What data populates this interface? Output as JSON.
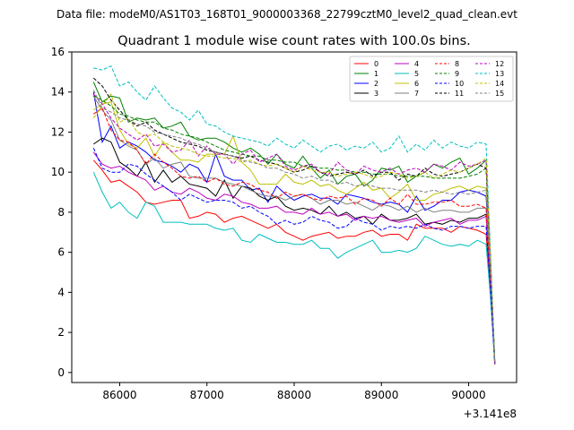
{
  "figure": {
    "suptitle": "Data file: modeM0/AS1T03_168T01_9000003368_22799cztM0_level2_quad_clean.evt",
    "title": "Quadrant 1 module wise count rates with 100.0s bins.",
    "offset_text": "+3.141e8"
  },
  "chart_data": {
    "type": "line",
    "xlabel": "",
    "ylabel": "",
    "x_offset": 314100000,
    "xlim": [
      85450,
      90550
    ],
    "ylim": [
      -0.5,
      16
    ],
    "xticks": [
      86000,
      87000,
      88000,
      89000,
      90000
    ],
    "yticks": [
      0,
      2,
      4,
      6,
      8,
      10,
      12,
      14,
      16
    ],
    "x": [
      85700,
      85800,
      85900,
      86000,
      86100,
      86200,
      86300,
      86400,
      86500,
      86600,
      86700,
      86800,
      86900,
      87000,
      87100,
      87200,
      87300,
      87400,
      87500,
      87600,
      87700,
      87800,
      87900,
      88000,
      88100,
      88200,
      88300,
      88400,
      88500,
      88600,
      88700,
      88800,
      88900,
      89000,
      89100,
      89200,
      89300,
      89400,
      89500,
      89600,
      89700,
      89800,
      89900,
      90000,
      90100,
      90200,
      90250,
      90300
    ],
    "legend": {
      "location": "upper right",
      "columns": 4
    },
    "series": [
      {
        "name": "0",
        "color": "#ff0000",
        "dash": "solid",
        "values": [
          10.6,
          10.1,
          9.5,
          9.6,
          9.3,
          9.0,
          8.5,
          8.4,
          8.5,
          8.6,
          8.6,
          7.7,
          7.8,
          8.0,
          7.9,
          7.5,
          7.7,
          7.8,
          7.6,
          7.4,
          7.2,
          7.4,
          7.0,
          6.8,
          6.6,
          6.8,
          6.9,
          7.0,
          6.7,
          6.8,
          6.8,
          7.0,
          7.1,
          6.8,
          6.9,
          6.9,
          6.6,
          7.4,
          7.2,
          7.2,
          7.2,
          7.0,
          7.3,
          7.2,
          7.1,
          6.9,
          4.2,
          0.5
        ]
      },
      {
        "name": "1",
        "color": "#008000",
        "dash": "solid",
        "values": [
          14.5,
          13.5,
          13.8,
          13.7,
          12.5,
          12.7,
          12.6,
          12.7,
          12.2,
          12.3,
          12.5,
          11.8,
          11.6,
          11.7,
          11.7,
          11.5,
          11.2,
          11.0,
          11.2,
          10.9,
          10.4,
          10.9,
          10.4,
          10.2,
          10.8,
          10.2,
          9.7,
          10.1,
          9.4,
          9.8,
          9.9,
          9.3,
          9.6,
          10.2,
          10.1,
          10.3,
          9.5,
          9.8,
          10.0,
          10.4,
          10.2,
          10.5,
          10.7,
          9.9,
          10.2,
          10.6,
          5.5,
          0.6
        ]
      },
      {
        "name": "2",
        "color": "#0000ff",
        "dash": "solid",
        "values": [
          14.0,
          11.5,
          12.3,
          11.2,
          11.5,
          11.3,
          11.0,
          10.6,
          10.5,
          10.3,
          10.0,
          10.4,
          10.2,
          9.5,
          10.9,
          9.8,
          9.6,
          9.6,
          9.1,
          9.2,
          8.5,
          9.3,
          8.9,
          8.6,
          8.8,
          8.9,
          8.7,
          8.7,
          8.4,
          8.9,
          8.8,
          8.7,
          8.5,
          8.4,
          8.5,
          8.4,
          8.0,
          8.8,
          8.1,
          8.3,
          8.6,
          8.6,
          9.0,
          9.1,
          9.0,
          8.8,
          5.0,
          0.4
        ]
      },
      {
        "name": "3",
        "color": "#000000",
        "dash": "solid",
        "values": [
          11.4,
          11.7,
          11.5,
          10.5,
          10.2,
          9.8,
          10.5,
          9.5,
          10.1,
          9.5,
          9.8,
          9.4,
          9.3,
          9.2,
          8.8,
          9.6,
          8.7,
          9.3,
          9.2,
          8.8,
          8.6,
          8.8,
          8.3,
          8.1,
          8.2,
          8.1,
          7.9,
          8.3,
          7.8,
          8.0,
          7.7,
          7.8,
          7.4,
          7.9,
          7.6,
          7.6,
          7.7,
          7.9,
          7.4,
          7.5,
          7.4,
          7.6,
          7.5,
          7.7,
          7.7,
          7.9,
          4.5,
          0.4
        ]
      },
      {
        "name": "4",
        "color": "#bf00bf",
        "dash": "solid",
        "values": [
          11.0,
          10.4,
          10.2,
          10.3,
          10.0,
          9.8,
          9.6,
          9.1,
          9.3,
          9.0,
          8.9,
          9.2,
          9.0,
          8.7,
          8.6,
          8.9,
          8.8,
          8.5,
          8.4,
          8.2,
          8.2,
          8.3,
          8.0,
          8.0,
          7.9,
          8.2,
          7.9,
          8.0,
          7.8,
          7.9,
          7.6,
          7.8,
          7.7,
          7.8,
          7.6,
          7.5,
          7.6,
          7.7,
          7.3,
          7.5,
          7.6,
          7.7,
          7.4,
          7.6,
          7.6,
          7.8,
          4.4,
          0.4
        ]
      },
      {
        "name": "5",
        "color": "#00bfbf",
        "dash": "solid",
        "values": [
          10.0,
          9.0,
          8.2,
          8.5,
          8.0,
          7.7,
          8.5,
          8.3,
          7.5,
          7.5,
          7.5,
          7.4,
          7.4,
          7.4,
          7.2,
          7.1,
          7.2,
          6.6,
          6.5,
          6.9,
          6.7,
          6.5,
          6.5,
          6.4,
          6.4,
          6.6,
          6.2,
          6.2,
          5.7,
          6.0,
          6.2,
          6.4,
          6.6,
          6.0,
          6.0,
          6.1,
          6.0,
          6.2,
          6.8,
          6.6,
          6.4,
          6.3,
          6.4,
          6.3,
          6.6,
          6.4,
          3.8,
          0.4
        ]
      },
      {
        "name": "6",
        "color": "#bfbf00",
        "dash": "solid",
        "values": [
          13.1,
          13.4,
          13.5,
          12.1,
          11.4,
          11.2,
          11.7,
          10.8,
          11.5,
          11.0,
          10.6,
          10.6,
          10.5,
          10.9,
          10.9,
          10.9,
          11.8,
          10.5,
          10.1,
          9.4,
          9.4,
          9.4,
          9.9,
          9.5,
          9.4,
          9.6,
          9.3,
          9.4,
          9.1,
          8.9,
          9.2,
          9.5,
          9.1,
          9.2,
          8.7,
          9.0,
          9.4,
          8.6,
          8.6,
          8.9,
          9.0,
          9.2,
          9.3,
          9.1,
          9.3,
          9.2,
          5.2,
          0.4
        ]
      },
      {
        "name": "7",
        "color": "#808080",
        "dash": "solid",
        "values": [
          13.8,
          13.1,
          12.6,
          11.6,
          11.3,
          11.1,
          10.4,
          10.7,
          10.2,
          10.4,
          10.5,
          9.8,
          9.7,
          9.7,
          9.7,
          9.5,
          9.4,
          9.3,
          9.1,
          8.9,
          8.8,
          8.8,
          8.6,
          8.8,
          8.9,
          8.7,
          8.4,
          8.6,
          8.6,
          8.4,
          8.5,
          8.3,
          8.1,
          8.4,
          8.3,
          8.1,
          8.3,
          8.0,
          8.2,
          8.0,
          8.1,
          8.1,
          8.0,
          8.0,
          8.2,
          8.2,
          4.7,
          0.4
        ]
      },
      {
        "name": "8",
        "color": "#ff0000",
        "dash": "dashed",
        "values": [
          12.9,
          13.2,
          12.1,
          11.6,
          11.5,
          11.1,
          10.4,
          10.9,
          10.5,
          10.2,
          9.8,
          9.7,
          9.8,
          9.5,
          9.7,
          9.4,
          9.3,
          9.5,
          9.4,
          9.1,
          9.0,
          8.7,
          9.0,
          8.8,
          8.9,
          8.7,
          8.6,
          8.8,
          8.7,
          8.8,
          8.4,
          8.7,
          8.6,
          8.3,
          8.7,
          8.4,
          8.9,
          8.4,
          8.4,
          8.5,
          8.5,
          8.6,
          8.3,
          8.3,
          8.4,
          8.2,
          4.6,
          0.4
        ]
      },
      {
        "name": "9",
        "color": "#008000",
        "dash": "dashed",
        "values": [
          13.8,
          13.6,
          13.3,
          12.9,
          12.8,
          12.6,
          12.5,
          12.5,
          12.2,
          12.1,
          11.9,
          11.8,
          11.7,
          11.5,
          11.3,
          11.1,
          11.0,
          10.9,
          10.8,
          10.8,
          10.6,
          10.6,
          10.5,
          10.5,
          10.3,
          10.3,
          10.2,
          10.2,
          10.1,
          10.1,
          10.0,
          10.0,
          9.9,
          9.9,
          9.9,
          9.8,
          9.8,
          9.8,
          9.8,
          9.7,
          9.7,
          9.7,
          9.7,
          9.8,
          9.9,
          10.2,
          5.6,
          0.5
        ]
      },
      {
        "name": "10",
        "color": "#0000ff",
        "dash": "dashed",
        "values": [
          11.2,
          10.2,
          10.0,
          10.0,
          10.4,
          10.3,
          9.9,
          9.6,
          9.3,
          9.0,
          8.6,
          8.9,
          8.7,
          8.5,
          8.6,
          8.6,
          8.5,
          8.2,
          8.3,
          8.0,
          7.8,
          7.4,
          7.6,
          7.4,
          7.5,
          7.8,
          7.6,
          7.5,
          7.2,
          7.3,
          7.7,
          7.5,
          7.4,
          7.1,
          7.3,
          7.2,
          7.3,
          7.2,
          7.4,
          7.2,
          7.1,
          7.3,
          7.3,
          7.2,
          7.3,
          7.3,
          4.2,
          0.4
        ]
      },
      {
        "name": "11",
        "color": "#000000",
        "dash": "dashed",
        "values": [
          14.7,
          14.3,
          13.6,
          13.1,
          12.6,
          12.3,
          12.5,
          12.1,
          11.9,
          11.7,
          11.5,
          11.4,
          11.3,
          11.1,
          11.0,
          10.9,
          10.8,
          10.7,
          10.8,
          10.6,
          10.5,
          10.4,
          10.2,
          10.0,
          10.1,
          10.3,
          10.0,
          9.8,
          9.9,
          10.0,
          9.9,
          10.1,
          9.8,
          10.0,
          10.0,
          9.6,
          9.9,
          9.8,
          10.2,
          9.9,
          9.8,
          9.9,
          10.0,
          10.2,
          10.4,
          10.2,
          5.8,
          0.5
        ]
      },
      {
        "name": "12",
        "color": "#bf00bf",
        "dash": "dashed",
        "values": [
          13.9,
          13.4,
          12.7,
          12.2,
          11.9,
          11.6,
          11.9,
          11.3,
          11.4,
          11.0,
          11.1,
          11.6,
          10.8,
          11.3,
          10.9,
          10.9,
          10.4,
          10.9,
          11.1,
          10.5,
          10.7,
          10.9,
          10.3,
          10.1,
          10.3,
          10.4,
          10.0,
          9.9,
          10.5,
          10.1,
          9.9,
          10.3,
          10.1,
          10.0,
          10.2,
          9.9,
          10.1,
          10.2,
          10.0,
          10.4,
          10.3,
          10.1,
          10.5,
          10.3,
          10.4,
          10.6,
          5.8,
          0.4
        ]
      },
      {
        "name": "13",
        "color": "#00bfbf",
        "dash": "dashed",
        "values": [
          15.2,
          15.1,
          15.3,
          14.3,
          14.5,
          14.0,
          13.6,
          14.3,
          13.7,
          13.2,
          13.0,
          12.6,
          13.1,
          12.4,
          12.3,
          12.0,
          11.8,
          11.7,
          11.6,
          11.5,
          11.3,
          11.7,
          11.4,
          11.2,
          11.6,
          11.3,
          11.0,
          11.3,
          11.4,
          11.1,
          11.3,
          11.2,
          11.5,
          11.0,
          11.2,
          11.8,
          11.0,
          11.4,
          11.1,
          11.6,
          11.2,
          11.5,
          11.3,
          11.2,
          11.5,
          11.4,
          6.0,
          0.5
        ]
      },
      {
        "name": "14",
        "color": "#bfbf00",
        "dash": "dashed",
        "values": [
          12.7,
          13.3,
          13.9,
          12.5,
          12.7,
          12.0,
          11.8,
          11.9,
          11.5,
          11.3,
          11.2,
          11.1,
          10.9,
          10.8,
          10.8,
          10.7,
          10.7,
          10.5,
          10.6,
          10.4,
          10.3,
          10.4,
          10.2,
          10.0,
          10.3,
          10.1,
          10.0,
          10.0,
          9.8,
          9.9,
          10.0,
          9.9,
          9.7,
          9.8,
          10.0,
          9.9,
          9.7,
          9.8,
          10.0,
          9.7,
          9.9,
          10.1,
          10.0,
          10.2,
          10.4,
          10.7,
          5.7,
          0.5
        ]
      },
      {
        "name": "15",
        "color": "#808080",
        "dash": "dashed",
        "values": [
          14.1,
          13.2,
          13.0,
          12.7,
          12.6,
          12.4,
          12.3,
          12.0,
          11.9,
          11.8,
          11.7,
          11.5,
          11.4,
          11.2,
          11.0,
          10.9,
          10.8,
          10.6,
          10.5,
          10.4,
          10.2,
          10.2,
          10.0,
          9.9,
          9.7,
          9.8,
          9.6,
          9.6,
          9.4,
          9.5,
          9.3,
          9.4,
          9.3,
          9.2,
          9.2,
          9.1,
          9.1,
          9.1,
          9.0,
          9.1,
          9.0,
          8.9,
          9.0,
          8.9,
          9.0,
          9.1,
          5.1,
          0.4
        ]
      }
    ]
  }
}
